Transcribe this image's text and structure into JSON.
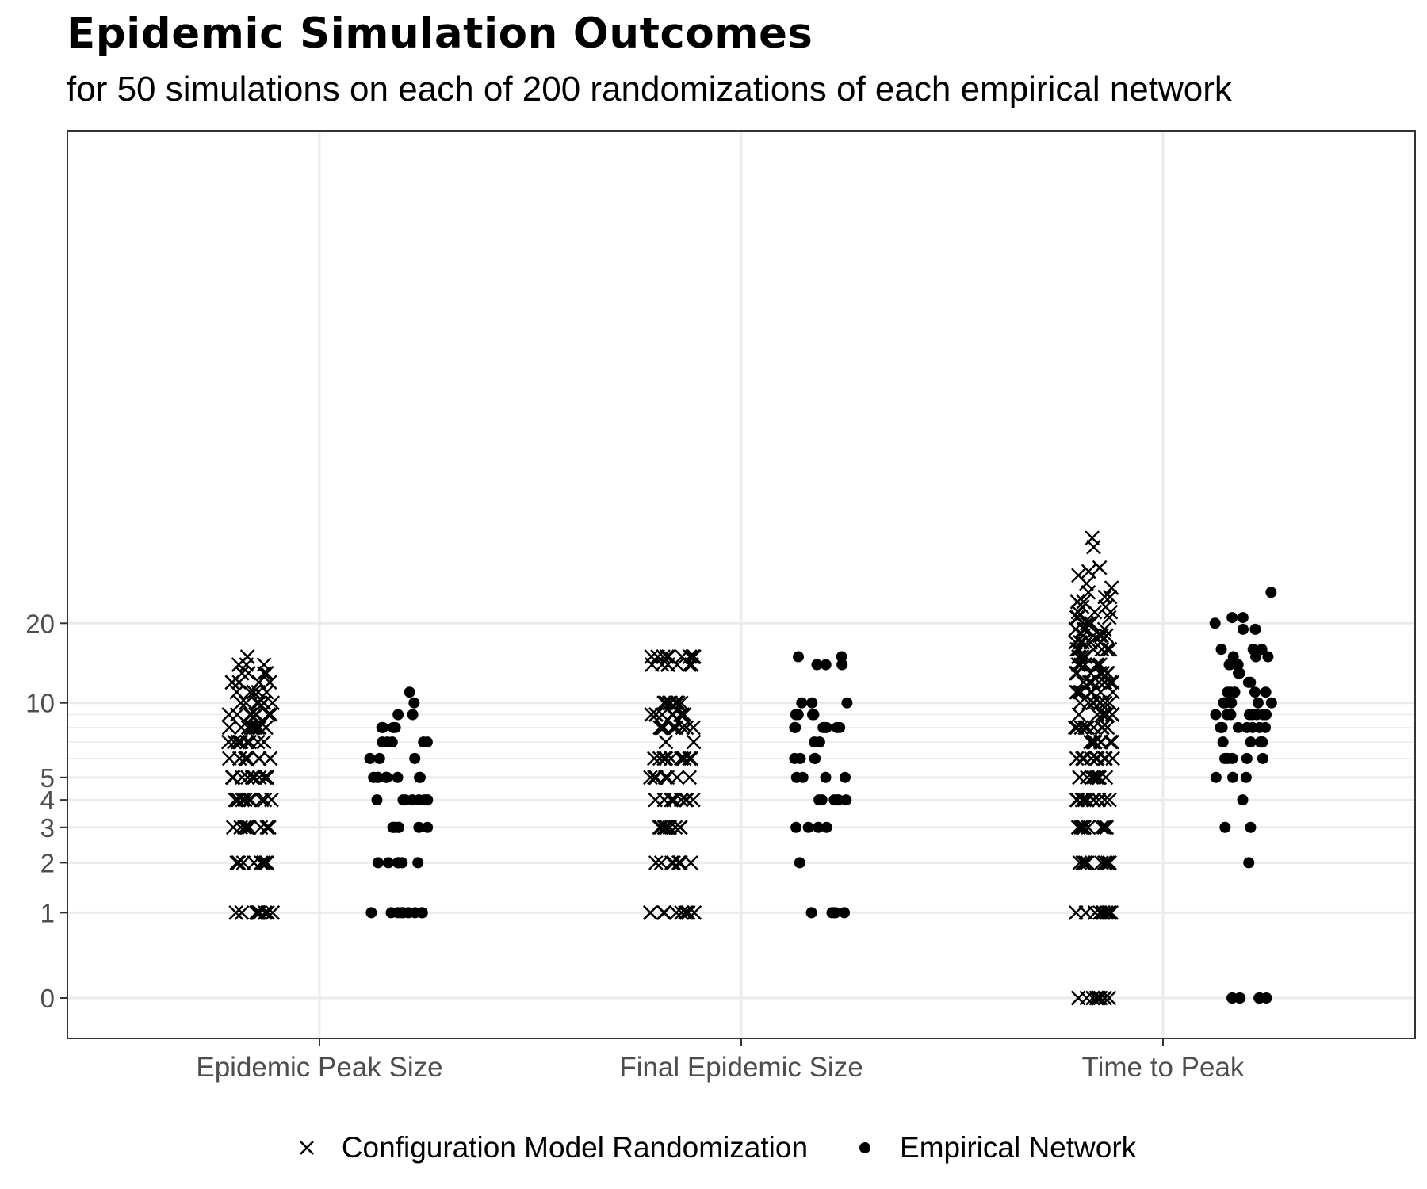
{
  "title": "Epidemic Simulation Outcomes",
  "subtitle": "for 50 simulations on each of 200 randomizations of each empirical network",
  "colors": {
    "points": "#000000",
    "grid": "#ebebeb",
    "panel_border": "#333333",
    "axis_text": "#4d4d4d"
  },
  "chart_data": {
    "type": "scatter",
    "title": "Epidemic Simulation Outcomes",
    "subtitle": "for 50 simulations on each of 200 randomizations of each empirical network",
    "xlabel": "",
    "ylabel": "",
    "y_scale": "log1p",
    "categories": [
      "Epidemic Peak Size",
      "Final Epidemic Size",
      "Time to Peak"
    ],
    "y_ticks": [
      0,
      1,
      2,
      3,
      4,
      5,
      10,
      20
    ],
    "y_tick_labels": [
      "0",
      "1",
      "2",
      "3",
      "4",
      "5",
      "10",
      "20"
    ],
    "ylim": [
      0,
      60
    ],
    "grid": true,
    "legend_position": "bottom",
    "series": [
      {
        "name": "Configuration Model Randomization",
        "marker": "cross",
        "values_by_category": [
          [
            1,
            1,
            1,
            1,
            1,
            1,
            1,
            1,
            1,
            1,
            2,
            2,
            2,
            2,
            2,
            2,
            2,
            2,
            2,
            2,
            3,
            3,
            3,
            3,
            3,
            3,
            3,
            3,
            3,
            3,
            4,
            4,
            4,
            4,
            4,
            4,
            4,
            4,
            4,
            4,
            5,
            5,
            5,
            5,
            5,
            5,
            5,
            5,
            5,
            5,
            6,
            6,
            6,
            6,
            6,
            6,
            6,
            6,
            6,
            6,
            7,
            7,
            7,
            7,
            7,
            7,
            7,
            7,
            7,
            7,
            8,
            8,
            8,
            8,
            8,
            8,
            8,
            8,
            8,
            8,
            9,
            9,
            9,
            9,
            9,
            9,
            9,
            9,
            10,
            10,
            10,
            10,
            10,
            10,
            10,
            11,
            11,
            11,
            11,
            11,
            11,
            12,
            12,
            12,
            12,
            12,
            13,
            13,
            13,
            13,
            14,
            14,
            14,
            15
          ],
          [
            1,
            1,
            1,
            1,
            1,
            1,
            1,
            1,
            1,
            1,
            2,
            2,
            2,
            2,
            2,
            2,
            2,
            2,
            2,
            2,
            3,
            3,
            3,
            3,
            3,
            3,
            3,
            3,
            3,
            3,
            4,
            4,
            4,
            4,
            4,
            4,
            4,
            4,
            4,
            4,
            5,
            5,
            5,
            5,
            5,
            5,
            5,
            5,
            5,
            5,
            6,
            6,
            6,
            6,
            6,
            6,
            6,
            6,
            6,
            6,
            7,
            7,
            8,
            8,
            8,
            8,
            8,
            8,
            8,
            8,
            8,
            8,
            9,
            9,
            9,
            9,
            9,
            9,
            9,
            9,
            9,
            9,
            10,
            10,
            10,
            10,
            10,
            10,
            10,
            10,
            10,
            10,
            14,
            14,
            14,
            14,
            14,
            14,
            14,
            14,
            14,
            14,
            15,
            15,
            15,
            15,
            15,
            15,
            15,
            15,
            15,
            15
          ],
          [
            0,
            0,
            0,
            0,
            0,
            0,
            0,
            0,
            0,
            0,
            1,
            1,
            1,
            1,
            1,
            1,
            1,
            1,
            1,
            1,
            2,
            2,
            2,
            2,
            2,
            2,
            2,
            2,
            2,
            2,
            3,
            3,
            3,
            3,
            3,
            3,
            3,
            3,
            3,
            3,
            4,
            4,
            4,
            4,
            4,
            4,
            4,
            4,
            4,
            4,
            5,
            5,
            5,
            5,
            5,
            5,
            5,
            5,
            5,
            5,
            6,
            6,
            6,
            6,
            6,
            6,
            6,
            6,
            6,
            6,
            7,
            7,
            7,
            7,
            7,
            7,
            7,
            7,
            7,
            7,
            8,
            8,
            8,
            8,
            8,
            8,
            8,
            8,
            8,
            8,
            9,
            9,
            9,
            9,
            9,
            9,
            9,
            9,
            9,
            10,
            10,
            10,
            10,
            10,
            10,
            10,
            10,
            10,
            11,
            11,
            11,
            11,
            11,
            11,
            11,
            11,
            12,
            12,
            12,
            12,
            12,
            12,
            12,
            12,
            13,
            13,
            13,
            13,
            13,
            13,
            13,
            14,
            14,
            14,
            14,
            14,
            14,
            14,
            15,
            15,
            15,
            15,
            15,
            15,
            16,
            16,
            16,
            16,
            16,
            16,
            17,
            17,
            17,
            17,
            17,
            18,
            18,
            18,
            18,
            18,
            19,
            19,
            19,
            19,
            20,
            20,
            20,
            20,
            21,
            21,
            21,
            22,
            22,
            22,
            23,
            23,
            24,
            24,
            25,
            25,
            26,
            27,
            28,
            30,
            31,
            32,
            38,
            41
          ]
        ]
      },
      {
        "name": "Empirical Network",
        "marker": "dot",
        "values_by_category": [
          [
            1,
            1,
            1,
            1,
            1,
            1,
            1,
            1,
            1,
            2,
            2,
            2,
            2,
            2,
            2,
            3,
            3,
            3,
            3,
            3,
            3,
            3,
            4,
            4,
            4,
            4,
            4,
            4,
            4,
            4,
            5,
            5,
            5,
            5,
            5,
            5,
            5,
            5,
            6,
            6,
            6,
            7,
            7,
            7,
            7,
            7,
            8,
            8,
            8,
            8,
            9,
            9,
            10,
            11
          ],
          [
            1,
            1,
            1,
            1,
            1,
            2,
            3,
            3,
            3,
            3,
            4,
            4,
            4,
            4,
            4,
            4,
            5,
            5,
            5,
            5,
            6,
            6,
            6,
            6,
            7,
            7,
            8,
            8,
            8,
            8,
            8,
            8,
            8,
            9,
            9,
            9,
            9,
            10,
            10,
            10,
            14,
            14,
            14,
            15,
            15
          ],
          [
            0,
            0,
            0,
            0,
            0,
            0,
            0,
            2,
            3,
            3,
            4,
            5,
            5,
            5,
            6,
            6,
            6,
            6,
            6,
            7,
            7,
            7,
            7,
            7,
            7,
            8,
            8,
            8,
            8,
            8,
            8,
            8,
            9,
            9,
            9,
            9,
            9,
            9,
            9,
            9,
            9,
            9,
            10,
            10,
            10,
            10,
            10,
            10,
            11,
            11,
            11,
            11,
            11,
            11,
            12,
            12,
            13,
            13,
            14,
            14,
            14,
            15,
            15,
            15,
            16,
            16,
            16,
            19,
            19,
            20,
            21,
            21,
            26
          ]
        ]
      }
    ]
  }
}
